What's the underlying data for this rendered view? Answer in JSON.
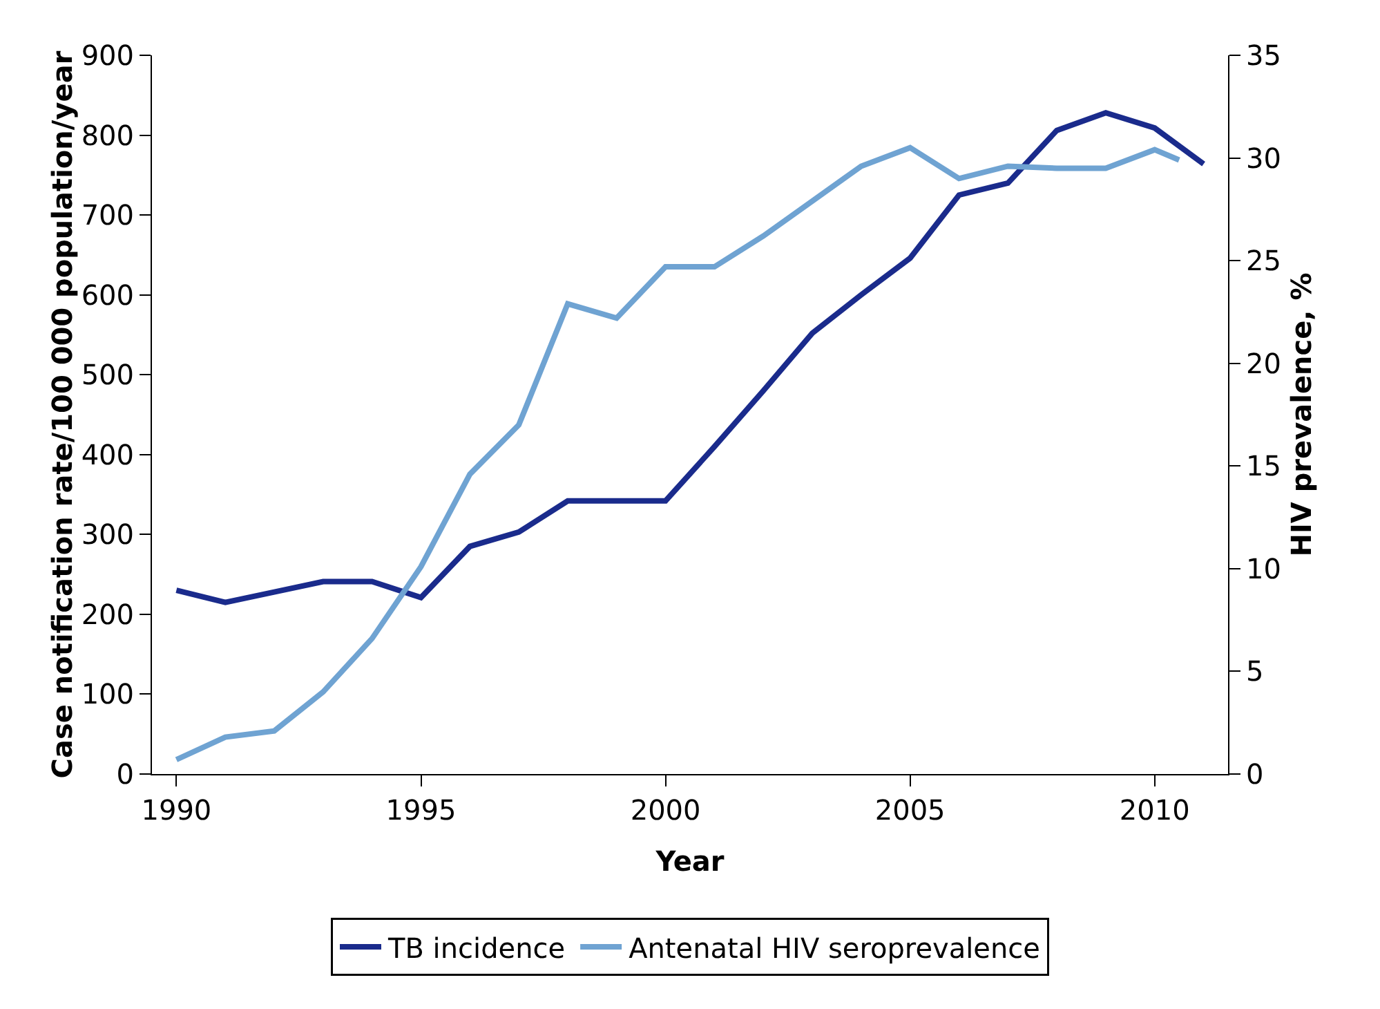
{
  "chart_data": {
    "type": "line",
    "xlabel": "Year",
    "ylabel": "Case notification rate/100 000 population/year",
    "y2label": "HIV prevalence, %",
    "xlim": [
      1989.5,
      2011.5
    ],
    "xticks": [
      1990,
      1995,
      2000,
      2005,
      2010
    ],
    "ylim": [
      0,
      900
    ],
    "yticks": [
      0,
      100,
      200,
      300,
      400,
      500,
      600,
      700,
      800,
      900
    ],
    "y2lim": [
      0,
      35
    ],
    "y2ticks": [
      0,
      5,
      10,
      15,
      20,
      25,
      30,
      35
    ],
    "grid": false,
    "legend": "bottom",
    "marker": "none",
    "line_style": "solid",
    "series": [
      {
        "name": "TB incidence",
        "color": "#1a2b8c",
        "x": [
          1990,
          1991,
          1992,
          1993,
          1994,
          1995,
          1996,
          1997,
          1998,
          1999,
          2000,
          2001,
          2002,
          2003,
          2004,
          2005,
          2006,
          2007,
          2008,
          2009,
          2010,
          2011
        ],
        "values": [
          230,
          215,
          228,
          241,
          241,
          221,
          285,
          303,
          342,
          342,
          342,
          410,
          480,
          552,
          600,
          646,
          725,
          740,
          806,
          828,
          809,
          764
        ]
      },
      {
        "name": "Antenatal HIV seroprevalence",
        "color": "#6fa3d2",
        "axis": "y2",
        "x": [
          1990,
          1991,
          1992,
          1993,
          1994,
          1995,
          1996,
          1997,
          1998,
          1999,
          2000,
          2001,
          2002,
          2003,
          2004,
          2005,
          2006,
          2007,
          2008,
          2009,
          2010,
          2010.5
        ],
        "values": [
          0.7,
          1.8,
          2.1,
          4.0,
          6.6,
          10.1,
          14.6,
          17.0,
          22.9,
          22.2,
          24.7,
          24.7,
          26.2,
          27.9,
          29.6,
          30.5,
          29.0,
          29.6,
          29.5,
          29.5,
          30.4,
          29.9
        ]
      }
    ]
  }
}
